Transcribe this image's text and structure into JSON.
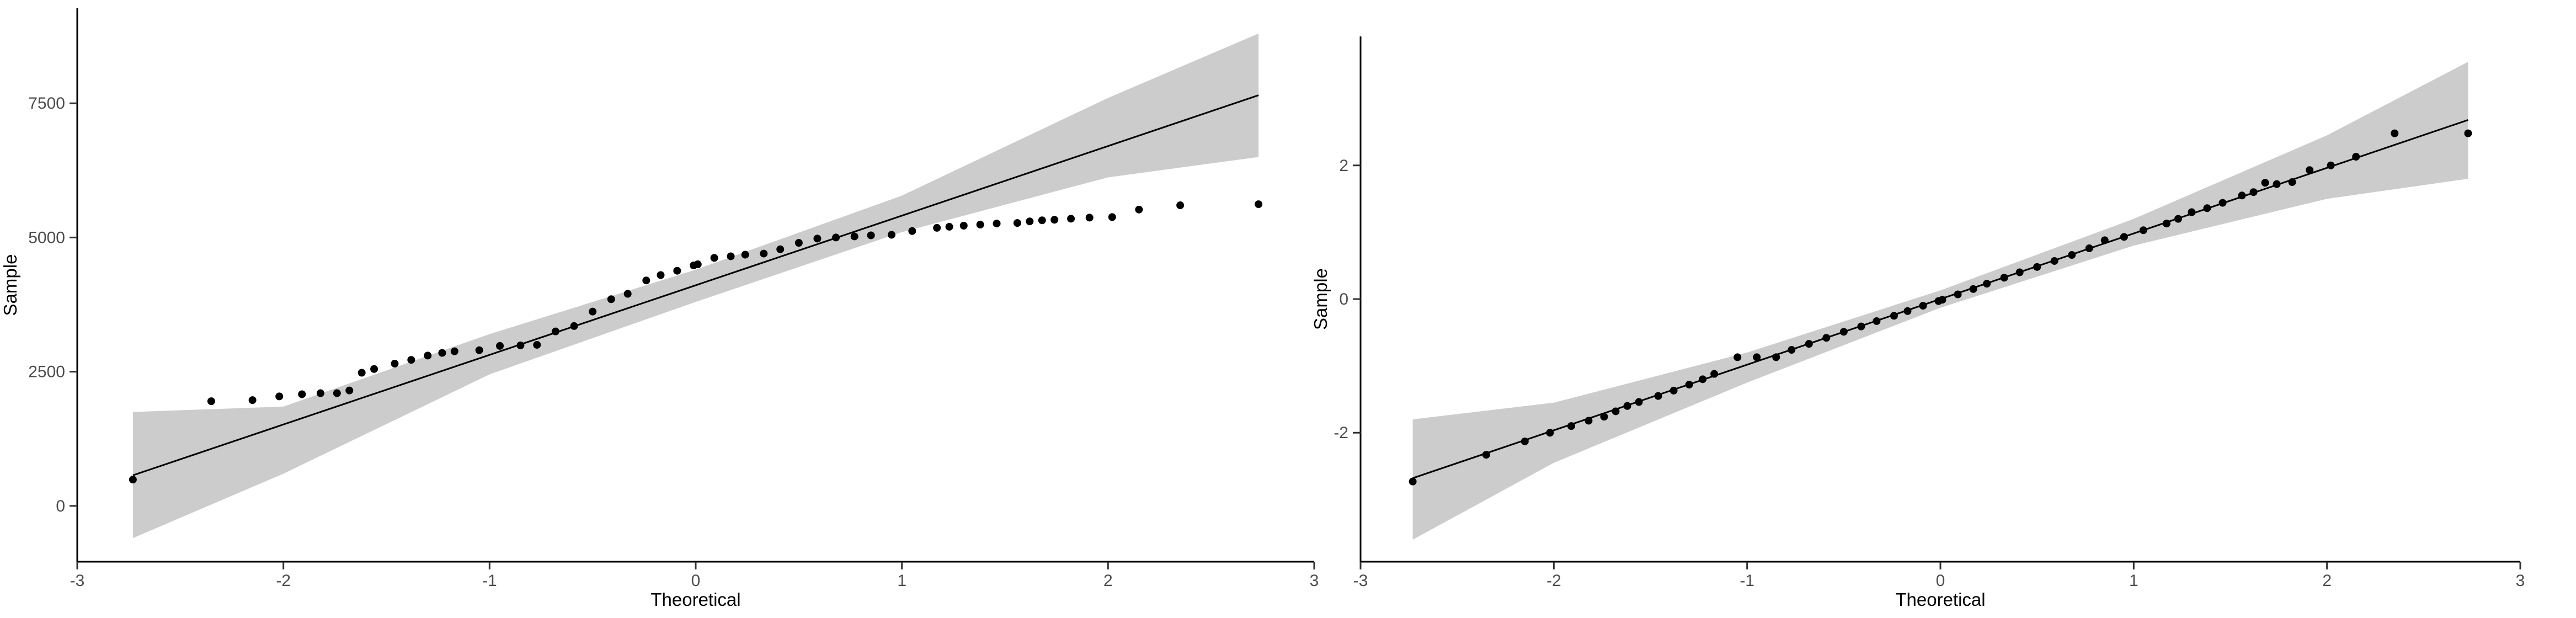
{
  "chart_data": [
    {
      "type": "scatter",
      "x_label": "Theoretical",
      "y_label": "Sample",
      "xlim": [
        -3,
        3
      ],
      "ylim": [
        -1040,
        9270
      ],
      "xticks": [
        -3,
        -2,
        -1,
        0,
        1,
        2,
        3
      ],
      "yticks": [
        0,
        2500,
        5000,
        7500
      ],
      "color": "#000000",
      "x": [
        -2.73,
        -2.35,
        -2.15,
        -2.02,
        -1.91,
        -1.82,
        -1.74,
        -1.68,
        -1.62,
        -1.56,
        -1.46,
        -1.38,
        -1.3,
        -1.23,
        -1.17,
        -1.05,
        -0.95,
        -0.85,
        -0.77,
        -0.68,
        -0.59,
        -0.5,
        -0.41,
        -0.33,
        -0.24,
        -0.17,
        -0.09,
        -0.01,
        0.01,
        0.09,
        0.17,
        0.24,
        0.33,
        0.41,
        0.5,
        0.59,
        0.68,
        0.77,
        0.85,
        0.95,
        1.05,
        1.17,
        1.23,
        1.3,
        1.38,
        1.46,
        1.56,
        1.62,
        1.68,
        1.74,
        1.82,
        1.91,
        2.02,
        2.15,
        2.35,
        2.73
      ],
      "y": [
        490,
        1950,
        1970,
        2040,
        2080,
        2100,
        2100,
        2150,
        2480,
        2550,
        2650,
        2720,
        2800,
        2850,
        2880,
        2900,
        2980,
        2990,
        3000,
        3250,
        3350,
        3620,
        3850,
        3950,
        4200,
        4300,
        4380,
        4480,
        4500,
        4620,
        4650,
        4680,
        4700,
        4780,
        4900,
        4980,
        5000,
        5020,
        5040,
        5050,
        5120,
        5180,
        5200,
        5220,
        5240,
        5260,
        5270,
        5300,
        5320,
        5330,
        5350,
        5370,
        5380,
        5520,
        5600,
        5620
      ],
      "ref_line": {
        "x": [
          -2.73,
          2.73
        ],
        "y": [
          570,
          7650
        ],
        "color": "#000000"
      },
      "band": {
        "x": [
          -2.73,
          -2,
          -1,
          0,
          1,
          2,
          2.73
        ],
        "lower": [
          -600,
          600,
          2450,
          3800,
          5100,
          6120,
          6500
        ],
        "upper": [
          1750,
          1850,
          3200,
          4400,
          5780,
          7600,
          8800
        ],
        "color": "#cccccc"
      }
    },
    {
      "type": "scatter",
      "x_label": "Theoretical",
      "y_label": "Sample",
      "xlim": [
        -3,
        3
      ],
      "ylim": [
        -3.93,
        3.93
      ],
      "xticks": [
        -3,
        -2,
        -1,
        0,
        1,
        2,
        3
      ],
      "yticks": [
        -2,
        0,
        2
      ],
      "color": "#000000",
      "x": [
        -2.73,
        -2.35,
        -2.15,
        -2.02,
        -1.91,
        -1.82,
        -1.74,
        -1.68,
        -1.62,
        -1.56,
        -1.46,
        -1.38,
        -1.3,
        -1.23,
        -1.17,
        -1.05,
        -0.95,
        -0.85,
        -0.77,
        -0.68,
        -0.59,
        -0.5,
        -0.41,
        -0.33,
        -0.24,
        -0.17,
        -0.09,
        -0.01,
        0.01,
        0.09,
        0.17,
        0.24,
        0.33,
        0.41,
        0.5,
        0.59,
        0.68,
        0.77,
        0.85,
        0.95,
        1.05,
        1.17,
        1.23,
        1.3,
        1.38,
        1.46,
        1.56,
        1.62,
        1.68,
        1.74,
        1.82,
        1.91,
        2.02,
        2.15,
        2.35,
        2.73
      ],
      "y": [
        -2.73,
        -2.33,
        -2.13,
        -2.0,
        -1.9,
        -1.82,
        -1.76,
        -1.68,
        -1.6,
        -1.54,
        -1.45,
        -1.37,
        -1.28,
        -1.2,
        -1.12,
        -0.87,
        -0.87,
        -0.87,
        -0.76,
        -0.67,
        -0.58,
        -0.49,
        -0.41,
        -0.33,
        -0.25,
        -0.18,
        -0.1,
        -0.03,
        -0.01,
        0.07,
        0.15,
        0.23,
        0.32,
        0.4,
        0.48,
        0.57,
        0.66,
        0.76,
        0.88,
        0.93,
        1.03,
        1.13,
        1.2,
        1.3,
        1.36,
        1.44,
        1.55,
        1.6,
        1.74,
        1.72,
        1.75,
        1.93,
        2.0,
        2.13,
        2.48,
        2.48
      ],
      "ref_line": {
        "x": [
          -2.73,
          2.73
        ],
        "y": [
          -2.68,
          2.68
        ],
        "color": "#000000"
      },
      "band": {
        "x": [
          -2.73,
          -2,
          -1,
          0,
          1,
          2,
          2.73
        ],
        "lower": [
          -3.6,
          -2.45,
          -1.25,
          -0.13,
          0.8,
          1.5,
          1.8
        ],
        "upper": [
          -1.8,
          -1.55,
          -0.8,
          0.13,
          1.2,
          2.45,
          3.55
        ],
        "color": "#cccccc"
      }
    }
  ]
}
